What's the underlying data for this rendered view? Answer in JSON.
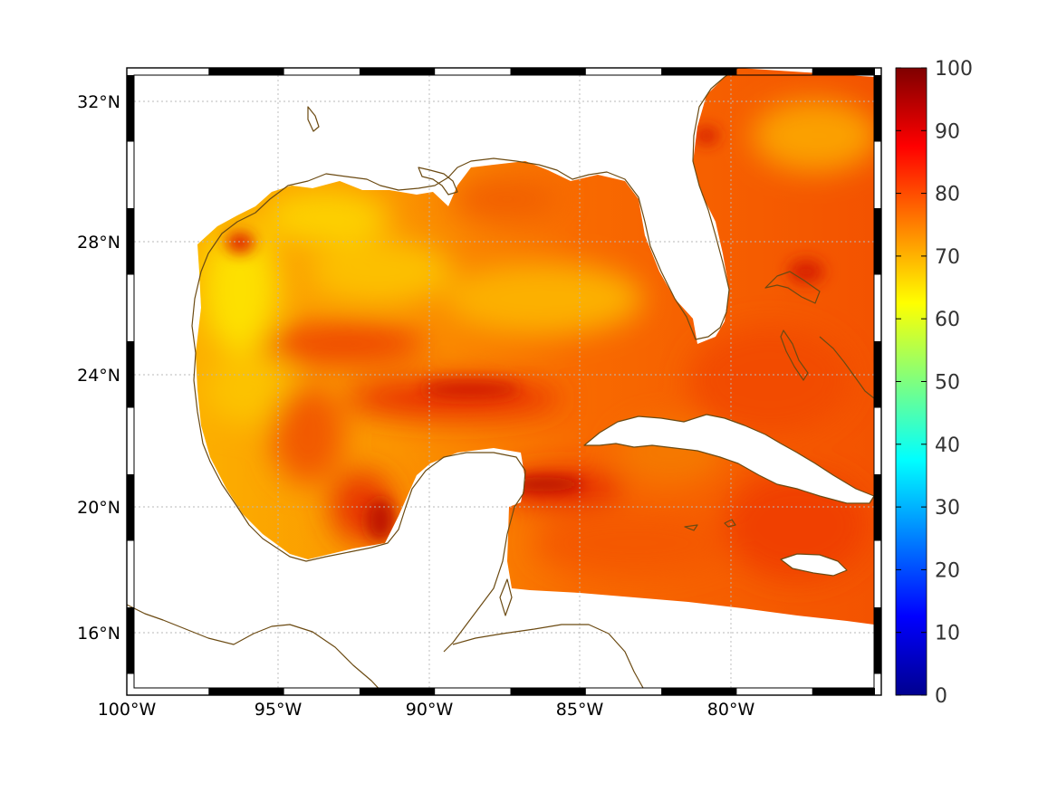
{
  "map": {
    "lon_labels": [
      "100°W",
      "95°W",
      "90°W",
      "85°W",
      "80°W"
    ],
    "lat_labels": [
      "32°N",
      "28°N",
      "24°N",
      "20°N",
      "16°N"
    ]
  },
  "colorbar": {
    "min": 0,
    "max": 100,
    "tick_labels": [
      "100",
      "90",
      "80",
      "70",
      "60",
      "50",
      "40",
      "30",
      "20",
      "10",
      "0"
    ],
    "colormap": "jet"
  },
  "colors": {
    "coastline": "#6b4a12",
    "field_low": "#fcc000",
    "field_mid": "#fb7a00",
    "field_high": "#e52300",
    "field_peak": "#b40000"
  }
}
